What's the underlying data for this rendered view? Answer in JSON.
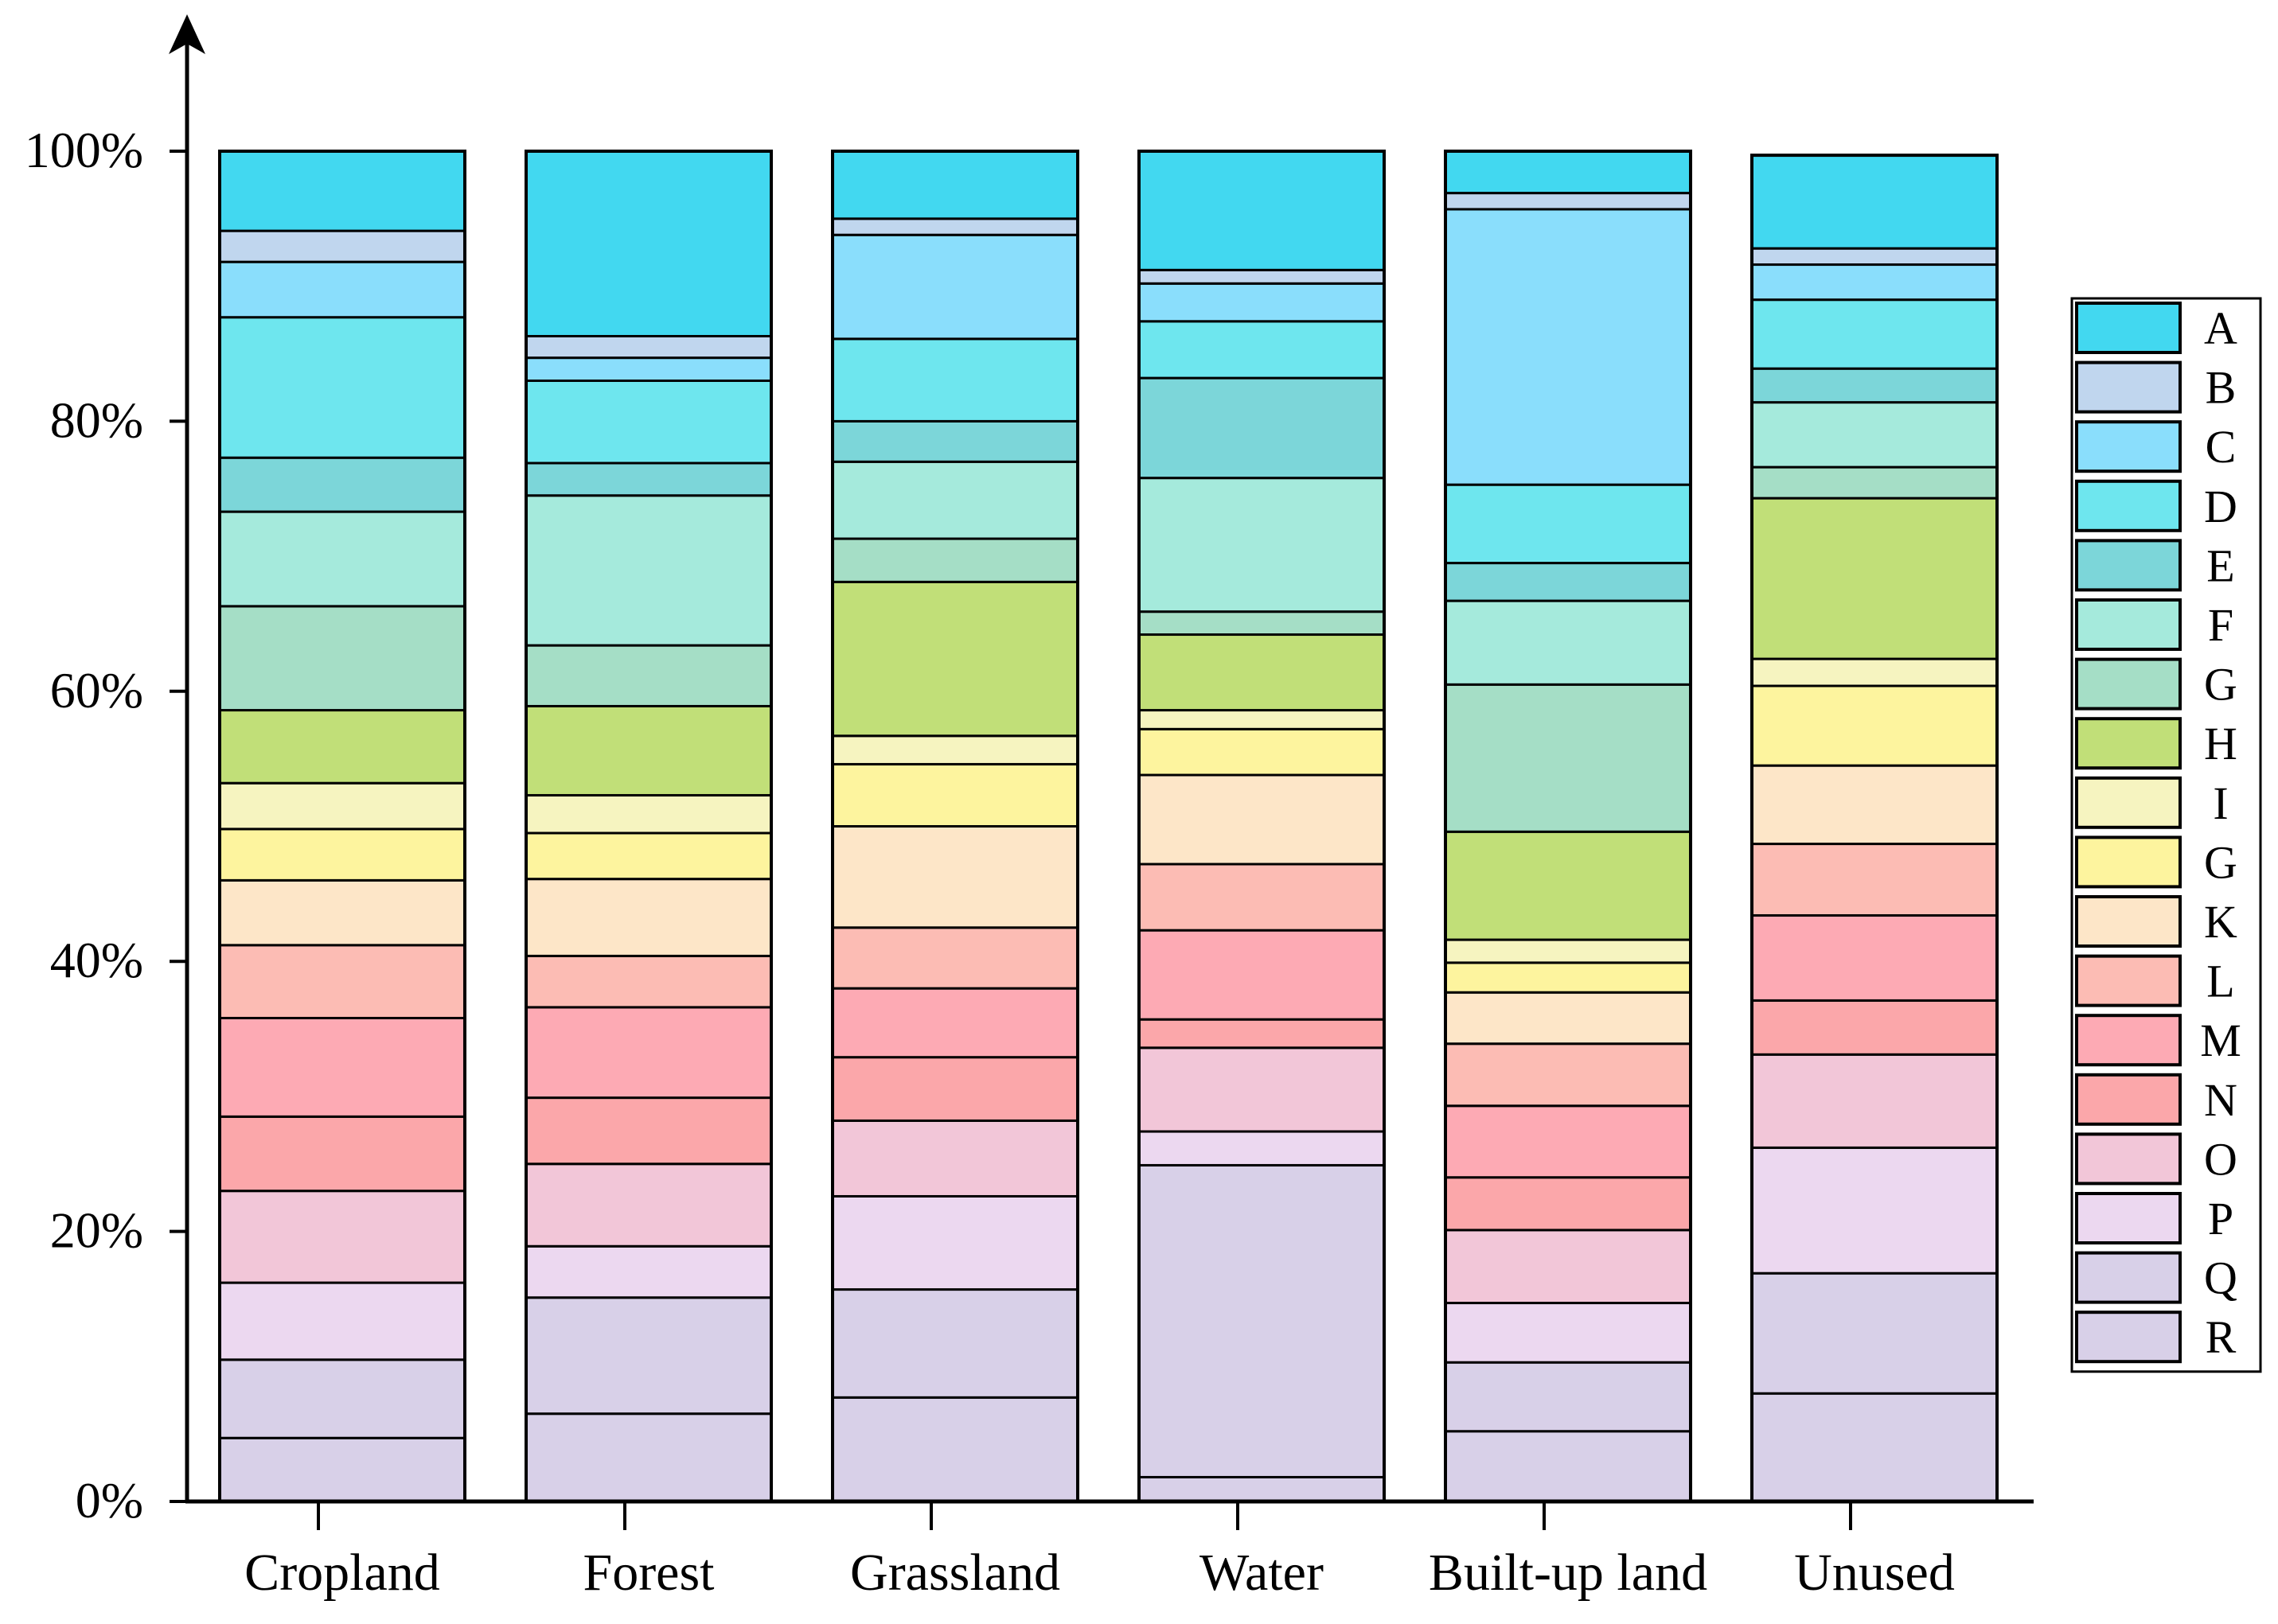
{
  "chart_data": {
    "type": "bar",
    "stacked": true,
    "normalized": true,
    "categories": [
      "Cropland",
      "Forest",
      "Grassland",
      "Water",
      "Built-up land",
      "Unused"
    ],
    "y_ticks": [
      "0%",
      "20%",
      "40%",
      "60%",
      "80%",
      "100%"
    ],
    "ylim": [
      0,
      100
    ],
    "xlabel": "",
    "ylabel": "",
    "legend_position": "right",
    "grid": false,
    "series": [
      {
        "name": "R",
        "color": "#D8D0E8",
        "values": [
          4.7,
          6.5,
          7.7,
          1.8,
          5.2,
          8.0
        ]
      },
      {
        "name": "Q",
        "color": "#D8D0E8",
        "values": [
          5.8,
          8.6,
          8.0,
          23.1,
          5.1,
          8.9
        ]
      },
      {
        "name": "P",
        "color": "#ECD8F0",
        "values": [
          5.7,
          3.8,
          6.9,
          2.5,
          4.4,
          9.3
        ]
      },
      {
        "name": "O",
        "color": "#F2C6D8",
        "values": [
          6.8,
          6.1,
          5.6,
          6.2,
          5.4,
          6.9
        ]
      },
      {
        "name": "N",
        "color": "#FBA7AA",
        "values": [
          5.5,
          4.9,
          4.7,
          2.1,
          3.9,
          4.0
        ]
      },
      {
        "name": "M",
        "color": "#FDAAB4",
        "values": [
          7.3,
          6.7,
          5.1,
          6.6,
          5.3,
          6.3
        ]
      },
      {
        "name": "L",
        "color": "#FCBCB4",
        "values": [
          5.4,
          3.8,
          4.5,
          4.9,
          4.6,
          5.3
        ]
      },
      {
        "name": "K",
        "color": "#FDE6C8",
        "values": [
          4.8,
          5.7,
          7.5,
          6.6,
          3.8,
          5.8
        ]
      },
      {
        "name": "G",
        "color": "#FDF49E",
        "values": [
          3.8,
          3.4,
          4.6,
          3.4,
          2.2,
          5.9
        ]
      },
      {
        "name": "I",
        "color": "#F6F4C0",
        "values": [
          3.4,
          2.8,
          2.1,
          1.4,
          1.7,
          2.0
        ]
      },
      {
        "name": "H",
        "color": "#C1DF78",
        "values": [
          5.4,
          6.6,
          11.4,
          5.6,
          8.0,
          11.9
        ]
      },
      {
        "name": "G",
        "color": "#A5DEC6",
        "values": [
          7.7,
          4.5,
          3.2,
          1.7,
          10.9,
          2.3
        ]
      },
      {
        "name": "F",
        "color": "#A5EADC",
        "values": [
          7.0,
          11.1,
          5.7,
          9.9,
          6.2,
          4.8
        ]
      },
      {
        "name": "E",
        "color": "#7CD6D9",
        "values": [
          4.0,
          2.4,
          3.0,
          7.4,
          2.8,
          2.5
        ]
      },
      {
        "name": "D",
        "color": "#6EE6EE",
        "values": [
          10.4,
          6.1,
          6.1,
          4.2,
          5.8,
          5.1
        ]
      },
      {
        "name": "C",
        "color": "#8ADEFC",
        "values": [
          4.1,
          1.7,
          7.7,
          2.8,
          20.4,
          2.6
        ]
      },
      {
        "name": "B",
        "color": "#C0D6EE",
        "values": [
          2.3,
          1.6,
          1.2,
          1.0,
          1.2,
          1.2
        ]
      },
      {
        "name": "A",
        "color": "#42D8F0",
        "values": [
          5.9,
          13.7,
          5.0,
          8.8,
          3.1,
          6.9
        ]
      }
    ]
  }
}
